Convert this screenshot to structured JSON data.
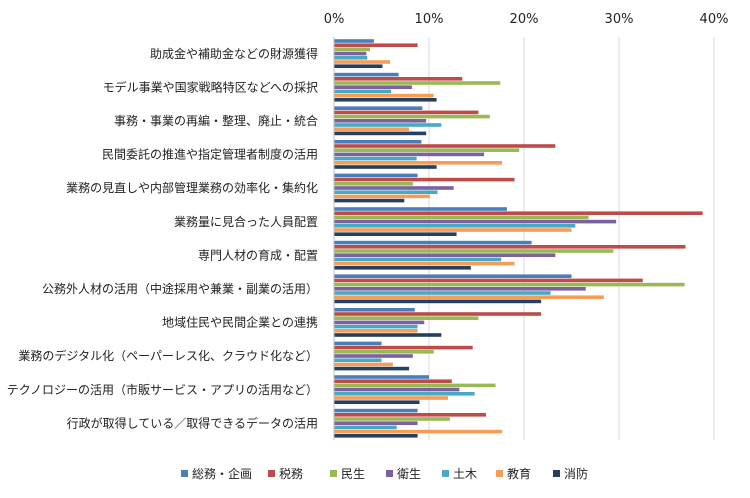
{
  "chart_data": {
    "type": "bar",
    "orientation": "horizontal",
    "title": "",
    "xlabel": "",
    "ylabel": "",
    "xlim": [
      0,
      40
    ],
    "x_ticks": [
      "0%",
      "10%",
      "20%",
      "30%",
      "40%"
    ],
    "grid": true,
    "legend_position": "bottom",
    "categories": [
      "助成金や補助金などの財源獲得",
      "モデル事業や国家戦略特区などへの採択",
      "事務・事業の再編・整理、廃止・統合",
      "民間委託の推進や指定管理者制度の活用",
      "業務の見直しや内部管理業務の効率化・集約化",
      "業務量に見合った人員配置",
      "専門人材の育成・配置",
      "公務外人材の活用（中途採用や兼業・副業の活用）",
      "地域住民や民間企業との連携",
      "業務のデジタル化（ペーパーレス化、クラウド化など）",
      "テクノロジーの活用（市販サービス・アプリの活用など）",
      "行政が取得している／取得できるデータの活用"
    ],
    "series": [
      {
        "name": "総務・企画",
        "color": "#4a7ebb",
        "values": [
          4.2,
          6.8,
          9.3,
          9.2,
          8.8,
          18.2,
          20.8,
          25.0,
          8.5,
          5.0,
          10.0,
          8.8
        ]
      },
      {
        "name": "税務",
        "color": "#be4b48",
        "values": [
          8.8,
          13.5,
          15.2,
          23.3,
          19.0,
          38.8,
          37.0,
          32.5,
          21.8,
          14.6,
          12.4,
          16.0
        ]
      },
      {
        "name": "民生",
        "color": "#98b954",
        "values": [
          3.8,
          17.5,
          16.4,
          19.5,
          8.3,
          26.8,
          29.4,
          36.9,
          15.2,
          10.5,
          17.0,
          12.2
        ]
      },
      {
        "name": "衛生",
        "color": "#7d60a0",
        "values": [
          3.4,
          8.2,
          9.7,
          15.8,
          12.6,
          29.7,
          23.3,
          26.5,
          9.5,
          8.3,
          13.2,
          8.8
        ]
      },
      {
        "name": "土木",
        "color": "#46aac4",
        "values": [
          3.5,
          6.0,
          11.3,
          8.7,
          10.9,
          25.4,
          17.6,
          22.8,
          8.8,
          5.0,
          14.8,
          6.6
        ]
      },
      {
        "name": "教育",
        "color": "#f59d56",
        "values": [
          5.9,
          10.5,
          7.9,
          17.7,
          10.1,
          25.0,
          19.0,
          28.4,
          8.8,
          6.2,
          12.0,
          17.7
        ]
      },
      {
        "name": "消防",
        "color": "#243f60",
        "values": [
          5.1,
          10.8,
          9.7,
          10.8,
          7.4,
          12.9,
          14.4,
          21.8,
          11.3,
          7.9,
          9.0,
          8.8
        ]
      }
    ]
  }
}
